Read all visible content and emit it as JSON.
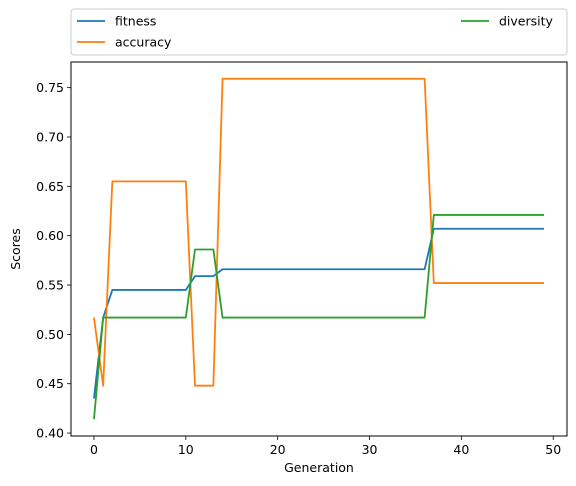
{
  "chart_data": {
    "type": "line",
    "xlabel": "Generation",
    "ylabel": "Scores",
    "xlim": [
      -2.5,
      51.5
    ],
    "ylim": [
      0.397,
      0.776
    ],
    "xticks": [
      0,
      10,
      20,
      30,
      40,
      50
    ],
    "yticks": [
      0.4,
      0.45,
      0.5,
      0.55,
      0.6,
      0.65,
      0.7,
      0.75
    ],
    "xtick_labels": [
      "0",
      "10",
      "20",
      "30",
      "40",
      "50"
    ],
    "ytick_labels": [
      "0.40",
      "0.45",
      "0.50",
      "0.55",
      "0.60",
      "0.65",
      "0.70",
      "0.75"
    ],
    "grid": false,
    "legend_placement": "above plot, two columns",
    "series": [
      {
        "name": "fitness",
        "color": "#1f77b4",
        "points": [
          [
            0,
            0.435
          ],
          [
            1,
            0.517
          ],
          [
            2,
            0.545
          ],
          [
            10,
            0.545
          ],
          [
            11,
            0.559
          ],
          [
            13,
            0.559
          ],
          [
            14,
            0.566
          ],
          [
            36,
            0.566
          ],
          [
            37,
            0.607
          ],
          [
            49,
            0.607
          ]
        ]
      },
      {
        "name": "accuracy",
        "color": "#ff7f0e",
        "points": [
          [
            0,
            0.517
          ],
          [
            1,
            0.448
          ],
          [
            2,
            0.655
          ],
          [
            10,
            0.655
          ],
          [
            11,
            0.448
          ],
          [
            13,
            0.448
          ],
          [
            14,
            0.759
          ],
          [
            36,
            0.759
          ],
          [
            37,
            0.552
          ],
          [
            49,
            0.552
          ]
        ]
      },
      {
        "name": "diversity",
        "color": "#2ca02c",
        "points": [
          [
            0,
            0.414
          ],
          [
            1,
            0.517
          ],
          [
            10,
            0.517
          ],
          [
            11,
            0.586
          ],
          [
            13,
            0.586
          ],
          [
            14,
            0.517
          ],
          [
            36,
            0.517
          ],
          [
            37,
            0.621
          ],
          [
            49,
            0.621
          ]
        ]
      }
    ]
  }
}
